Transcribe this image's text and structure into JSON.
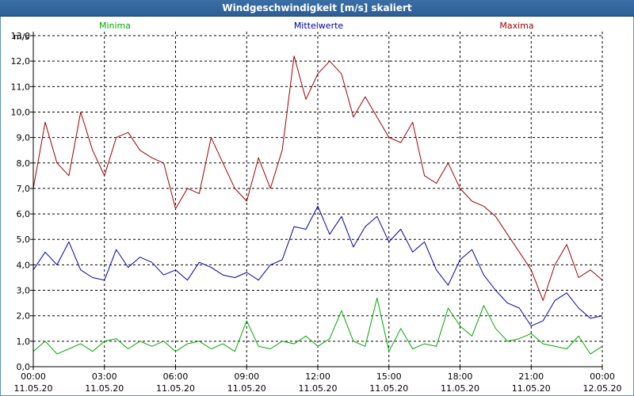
{
  "chart_data": {
    "type": "line",
    "title": "Windgeschwindigkeit [m/s] skaliert",
    "ylabel": "m/s",
    "ylim": [
      0,
      13
    ],
    "yticks": [
      "0,0",
      "1,0",
      "2,0",
      "3,0",
      "4,0",
      "5,0",
      "6,0",
      "7,0",
      "8,0",
      "9,0",
      "10,0",
      "11,0",
      "12,0",
      "13,0"
    ],
    "xlim_hours": [
      0,
      24
    ],
    "xticks": [
      {
        "time": "00:00",
        "date": "11.05.20"
      },
      {
        "time": "03:00",
        "date": "11.05.20"
      },
      {
        "time": "06:00",
        "date": "11.05.20"
      },
      {
        "time": "09:00",
        "date": "11.05.20"
      },
      {
        "time": "12:00",
        "date": "11.05.20"
      },
      {
        "time": "15:00",
        "date": "11.05.20"
      },
      {
        "time": "18:00",
        "date": "11.05.20"
      },
      {
        "time": "21:00",
        "date": "11.05.20"
      },
      {
        "time": "00:00",
        "date": "12.05.20"
      }
    ],
    "grid": true,
    "series": [
      {
        "name": "Minima",
        "color": "#00aa00",
        "x": [
          0,
          0.5,
          1,
          1.5,
          2,
          2.5,
          3,
          3.5,
          4,
          4.5,
          5,
          5.5,
          6,
          6.5,
          7,
          7.5,
          8,
          8.5,
          9,
          9.5,
          10,
          10.5,
          11,
          11.5,
          12,
          12.5,
          13,
          13.5,
          14,
          14.5,
          15,
          15.5,
          16,
          16.5,
          17,
          17.5,
          18,
          18.5,
          19,
          19.5,
          20,
          20.5,
          21,
          21.5,
          22,
          22.5,
          23,
          23.5,
          24
        ],
        "y": [
          0.6,
          1.0,
          0.5,
          0.7,
          0.9,
          0.6,
          1.0,
          1.1,
          0.7,
          1.0,
          0.8,
          1.0,
          0.6,
          0.9,
          1.0,
          0.7,
          0.9,
          0.6,
          1.8,
          0.8,
          0.7,
          1.0,
          0.9,
          1.2,
          0.8,
          1.1,
          2.2,
          1.0,
          0.8,
          2.7,
          0.6,
          1.5,
          0.7,
          0.9,
          0.8,
          2.3,
          1.6,
          1.2,
          2.4,
          1.5,
          1.0,
          1.1,
          1.3,
          0.9,
          0.8,
          0.7,
          1.2,
          0.5,
          0.8
        ]
      },
      {
        "name": "Mittelwerte",
        "color": "#0000aa",
        "x": [
          0,
          0.5,
          1,
          1.5,
          2,
          2.5,
          3,
          3.5,
          4,
          4.5,
          5,
          5.5,
          6,
          6.5,
          7,
          7.5,
          8,
          8.5,
          9,
          9.5,
          10,
          10.5,
          11,
          11.5,
          12,
          12.5,
          13,
          13.5,
          14,
          14.5,
          15,
          15.5,
          16,
          16.5,
          17,
          17.5,
          18,
          18.5,
          19,
          19.5,
          20,
          20.5,
          21,
          21.5,
          22,
          22.5,
          23,
          23.5,
          24
        ],
        "y": [
          3.8,
          4.5,
          4.0,
          4.9,
          3.8,
          3.5,
          3.4,
          4.6,
          3.9,
          4.3,
          4.1,
          3.6,
          3.8,
          3.4,
          4.1,
          3.9,
          3.6,
          3.5,
          3.7,
          3.4,
          4.0,
          4.2,
          5.5,
          5.4,
          6.3,
          5.2,
          5.9,
          4.7,
          5.5,
          5.9,
          4.9,
          5.4,
          4.5,
          4.9,
          3.8,
          3.2,
          4.2,
          4.6,
          3.6,
          3.0,
          2.5,
          2.3,
          1.6,
          1.8,
          2.6,
          2.9,
          2.3,
          1.9,
          2.0
        ]
      },
      {
        "name": "Maxima",
        "color": "#a00000",
        "x": [
          0,
          0.5,
          1,
          1.5,
          2,
          2.5,
          3,
          3.5,
          4,
          4.5,
          5,
          5.5,
          6,
          6.5,
          7,
          7.5,
          8,
          8.5,
          9,
          9.5,
          10,
          10.5,
          11,
          11.5,
          12,
          12.5,
          13,
          13.5,
          14,
          14.5,
          15,
          15.5,
          16,
          16.5,
          17,
          17.5,
          18,
          18.5,
          19,
          19.5,
          20,
          20.5,
          21,
          21.5,
          22,
          22.5,
          23,
          23.5,
          24
        ],
        "y": [
          7.0,
          9.6,
          8.0,
          7.5,
          10.0,
          8.5,
          7.5,
          9.0,
          9.2,
          8.5,
          8.2,
          8.0,
          6.2,
          7.0,
          6.8,
          9.0,
          8.0,
          7.0,
          6.5,
          8.2,
          7.0,
          8.5,
          12.2,
          10.5,
          11.5,
          12.0,
          11.5,
          9.8,
          10.6,
          9.8,
          9.0,
          8.8,
          9.6,
          7.5,
          7.2,
          8.0,
          7.0,
          6.5,
          6.3,
          5.9,
          5.2,
          4.5,
          3.8,
          2.6,
          4.0,
          4.8,
          3.5,
          3.8,
          3.4
        ]
      }
    ]
  }
}
